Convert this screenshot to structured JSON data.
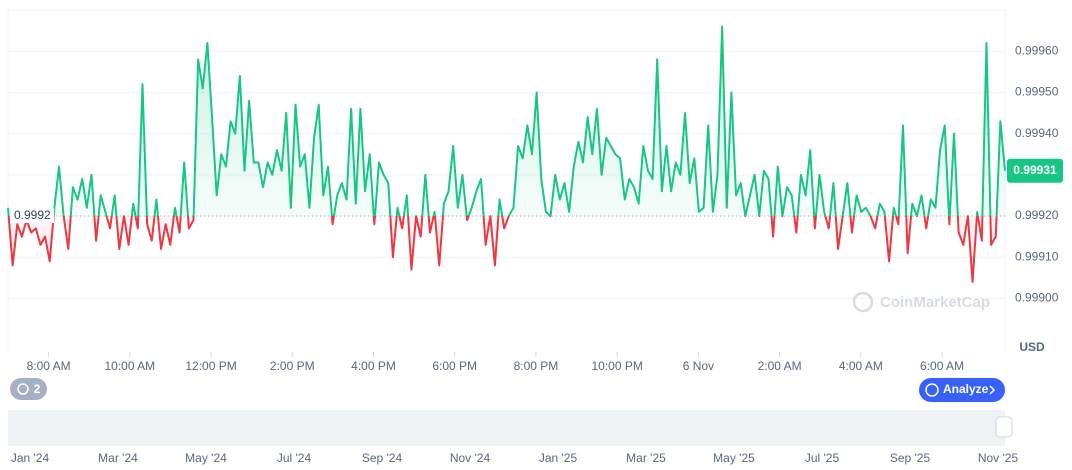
{
  "chart_data": {
    "type": "line",
    "values": [
      0.99922,
      0.99908,
      0.99918,
      0.99915,
      0.99919,
      0.99916,
      0.99917,
      0.99913,
      0.99915,
      0.99909,
      0.99922,
      0.99932,
      0.9992,
      0.99912,
      0.99927,
      0.99924,
      0.99929,
      0.99922,
      0.9993,
      0.99914,
      0.99925,
      0.99921,
      0.99917,
      0.99925,
      0.99912,
      0.9992,
      0.99913,
      0.99923,
      0.99917,
      0.99952,
      0.99918,
      0.99914,
      0.99924,
      0.99912,
      0.99918,
      0.99913,
      0.99922,
      0.99916,
      0.99933,
      0.99917,
      0.99919,
      0.99958,
      0.99951,
      0.99962,
      0.99944,
      0.99925,
      0.99935,
      0.99932,
      0.99943,
      0.9994,
      0.99954,
      0.99931,
      0.99948,
      0.99933,
      0.99933,
      0.99927,
      0.99933,
      0.9993,
      0.99936,
      0.99931,
      0.99945,
      0.99922,
      0.99947,
      0.99932,
      0.99935,
      0.99922,
      0.99939,
      0.99947,
      0.99925,
      0.99932,
      0.99918,
      0.99925,
      0.99928,
      0.99924,
      0.99946,
      0.99923,
      0.99946,
      0.99926,
      0.99935,
      0.99918,
      0.99933,
      0.9993,
      0.99928,
      0.9991,
      0.99922,
      0.99917,
      0.99925,
      0.99907,
      0.9992,
      0.99915,
      0.9993,
      0.99916,
      0.99921,
      0.99908,
      0.99923,
      0.99926,
      0.99937,
      0.99922,
      0.9993,
      0.99919,
      0.99922,
      0.99926,
      0.99929,
      0.99913,
      0.9992,
      0.99908,
      0.99924,
      0.99917,
      0.9992,
      0.99922,
      0.99937,
      0.99934,
      0.99942,
      0.99935,
      0.9995,
      0.99929,
      0.99921,
      0.9992,
      0.9993,
      0.99924,
      0.99928,
      0.99921,
      0.99932,
      0.99938,
      0.99933,
      0.99944,
      0.99935,
      0.99946,
      0.9993,
      0.99939,
      0.99937,
      0.99935,
      0.99934,
      0.99924,
      0.99929,
      0.99927,
      0.99923,
      0.99937,
      0.99931,
      0.99929,
      0.99958,
      0.99926,
      0.99937,
      0.99926,
      0.99933,
      0.9993,
      0.99945,
      0.99928,
      0.99934,
      0.99921,
      0.99922,
      0.99942,
      0.99921,
      0.9993,
      0.99966,
      0.99922,
      0.9995,
      0.99925,
      0.99928,
      0.9992,
      0.99925,
      0.9993,
      0.9992,
      0.99931,
      0.99929,
      0.99915,
      0.99932,
      0.9992,
      0.99927,
      0.99925,
      0.99916,
      0.9993,
      0.99925,
      0.99936,
      0.99917,
      0.9993,
      0.99921,
      0.99917,
      0.99928,
      0.99912,
      0.9992,
      0.99928,
      0.99916,
      0.99925,
      0.99921,
      0.99922,
      0.9992,
      0.99917,
      0.99923,
      0.99921,
      0.99909,
      0.99922,
      0.99918,
      0.99942,
      0.99911,
      0.99923,
      0.9992,
      0.99925,
      0.99917,
      0.99924,
      0.99922,
      0.99936,
      0.99942,
      0.99918,
      0.9994,
      0.99916,
      0.99913,
      0.9992,
      0.99904,
      0.99921,
      0.99914,
      0.99962,
      0.99913,
      0.99915,
      0.99943,
      0.99931
    ],
    "up_color": "#16c784",
    "down_color": "#ea3943",
    "baseline": 0.9992,
    "last_price": 0.99931,
    "ylim": [
      0.99887,
      0.9997
    ],
    "yticks": [
      {
        "value": 0.999,
        "label": "0.99900"
      },
      {
        "value": 0.9991,
        "label": "0.99910"
      },
      {
        "value": 0.9992,
        "label": "0.99920"
      },
      {
        "value": 0.9993,
        "label": "0.99930"
      },
      {
        "value": 0.9994,
        "label": "0.99940"
      },
      {
        "value": 0.9995,
        "label": "0.99950"
      },
      {
        "value": 0.9996,
        "label": "0.99960"
      }
    ],
    "xlim": [
      0,
      24.55
    ],
    "xticks": [
      {
        "value": 1,
        "label": "8:00 AM"
      },
      {
        "value": 3,
        "label": "10:00 AM"
      },
      {
        "value": 5,
        "label": "12:00 PM"
      },
      {
        "value": 7,
        "label": "2:00 PM"
      },
      {
        "value": 9,
        "label": "4:00 PM"
      },
      {
        "value": 11,
        "label": "6:00 PM"
      },
      {
        "value": 13,
        "label": "8:00 PM"
      },
      {
        "value": 15,
        "label": "10:00 PM"
      },
      {
        "value": 17,
        "label": "6 Nov"
      },
      {
        "value": 19,
        "label": "2:00 AM"
      },
      {
        "value": 21,
        "label": "4:00 AM"
      },
      {
        "value": 23,
        "label": "6:00 AM"
      }
    ],
    "unit": "USD",
    "watermark": "CoinMarketCap",
    "grid": true
  },
  "ui": {
    "badge": "2",
    "button": "Analyze",
    "navigator_labels": [
      "Jan '24",
      "Mar '24",
      "May '24",
      "Jul '24",
      "Sep '24",
      "Nov '24",
      "Jan '25",
      "Mar '25",
      "May '25",
      "Jul '25",
      "Sep '25",
      "Nov '25"
    ]
  }
}
